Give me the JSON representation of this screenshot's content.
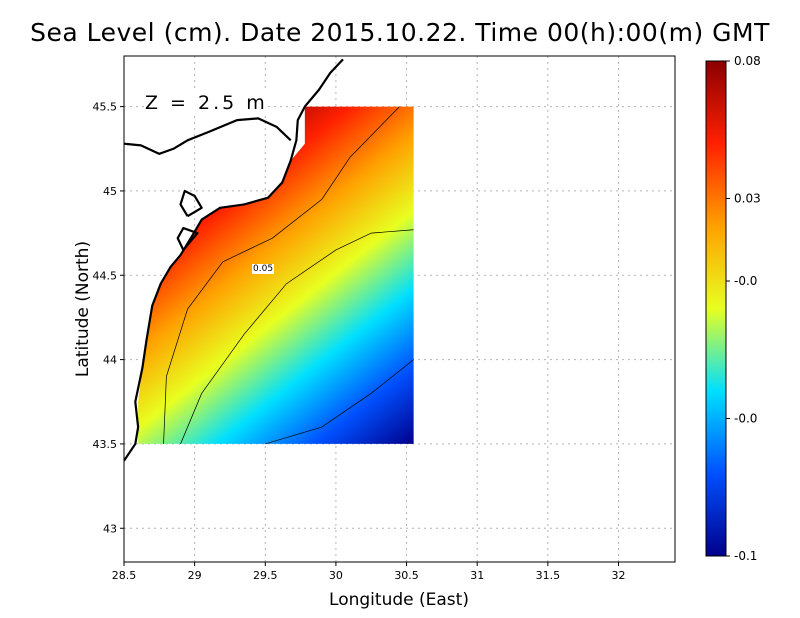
{
  "chart_data": {
    "type": "heatmap",
    "title": "Sea Level (cm). Date 2015.10.22. Time 00(h):00(m) GMT",
    "xlabel": "Longitude (East)",
    "ylabel": "Latitude (North)",
    "annotation": "Z = 2.5 m",
    "xlim": [
      28.5,
      32.4
    ],
    "ylim": [
      42.8,
      45.8
    ],
    "xticks": [
      "28.5",
      "29",
      "29.5",
      "30",
      "30.5",
      "31",
      "31.5",
      "32"
    ],
    "xtick_values": [
      28.5,
      29,
      29.5,
      30,
      30.5,
      31,
      31.5,
      32
    ],
    "yticks": [
      "43",
      "43.5",
      "44",
      "44.5",
      "45",
      "45.5"
    ],
    "ytick_values": [
      43,
      43.5,
      44,
      44.5,
      45,
      45.5
    ],
    "grid": true,
    "colorbar": {
      "labels": [
        "0.08",
        "0.03",
        "-0.0",
        "-0.0",
        "-0.1"
      ],
      "label_values": [
        0.08,
        0.03,
        0.0,
        -0.05,
        -0.1
      ],
      "range": [
        -0.1,
        0.08
      ],
      "colors": [
        "#00008b",
        "#0050ff",
        "#00e0ff",
        "#e8ff20",
        "#ffa000",
        "#ff2000",
        "#8b0000"
      ]
    },
    "contour_labels": [
      {
        "text": "0.05",
        "lon": 29.45,
        "lat": 44.55
      }
    ],
    "field_extent": {
      "lon": [
        28.6,
        30.55
      ],
      "lat": [
        43.5,
        45.5
      ]
    },
    "coastline": [
      [
        [
          28.5,
          43.4
        ],
        [
          28.58,
          43.5
        ],
        [
          28.6,
          43.6
        ],
        [
          28.58,
          43.75
        ],
        [
          28.63,
          43.95
        ],
        [
          28.66,
          44.12
        ],
        [
          28.7,
          44.32
        ],
        [
          28.76,
          44.45
        ],
        [
          28.83,
          44.55
        ],
        [
          28.9,
          44.62
        ],
        [
          28.98,
          44.73
        ],
        [
          29.05,
          44.83
        ],
        [
          29.18,
          44.9
        ],
        [
          29.35,
          44.92
        ],
        [
          29.52,
          44.96
        ],
        [
          29.62,
          45.05
        ],
        [
          29.68,
          45.18
        ],
        [
          29.72,
          45.3
        ],
        [
          29.73,
          45.42
        ],
        [
          29.78,
          45.5
        ],
        [
          29.88,
          45.6
        ],
        [
          29.96,
          45.7
        ],
        [
          30.05,
          45.78
        ]
      ],
      [
        [
          28.5,
          45.28
        ],
        [
          28.62,
          45.27
        ],
        [
          28.75,
          45.22
        ],
        [
          28.85,
          45.25
        ],
        [
          28.95,
          45.3
        ],
        [
          29.1,
          45.35
        ],
        [
          29.3,
          45.42
        ],
        [
          29.45,
          45.43
        ],
        [
          29.58,
          45.38
        ],
        [
          29.68,
          45.3
        ]
      ],
      [
        [
          28.95,
          44.85
        ],
        [
          28.9,
          44.92
        ],
        [
          28.93,
          45.0
        ],
        [
          29.0,
          44.97
        ],
        [
          29.05,
          44.9
        ],
        [
          28.95,
          44.85
        ]
      ],
      [
        [
          28.92,
          44.65
        ],
        [
          28.88,
          44.72
        ],
        [
          28.92,
          44.78
        ],
        [
          29.02,
          44.75
        ],
        [
          28.92,
          44.65
        ]
      ]
    ]
  }
}
